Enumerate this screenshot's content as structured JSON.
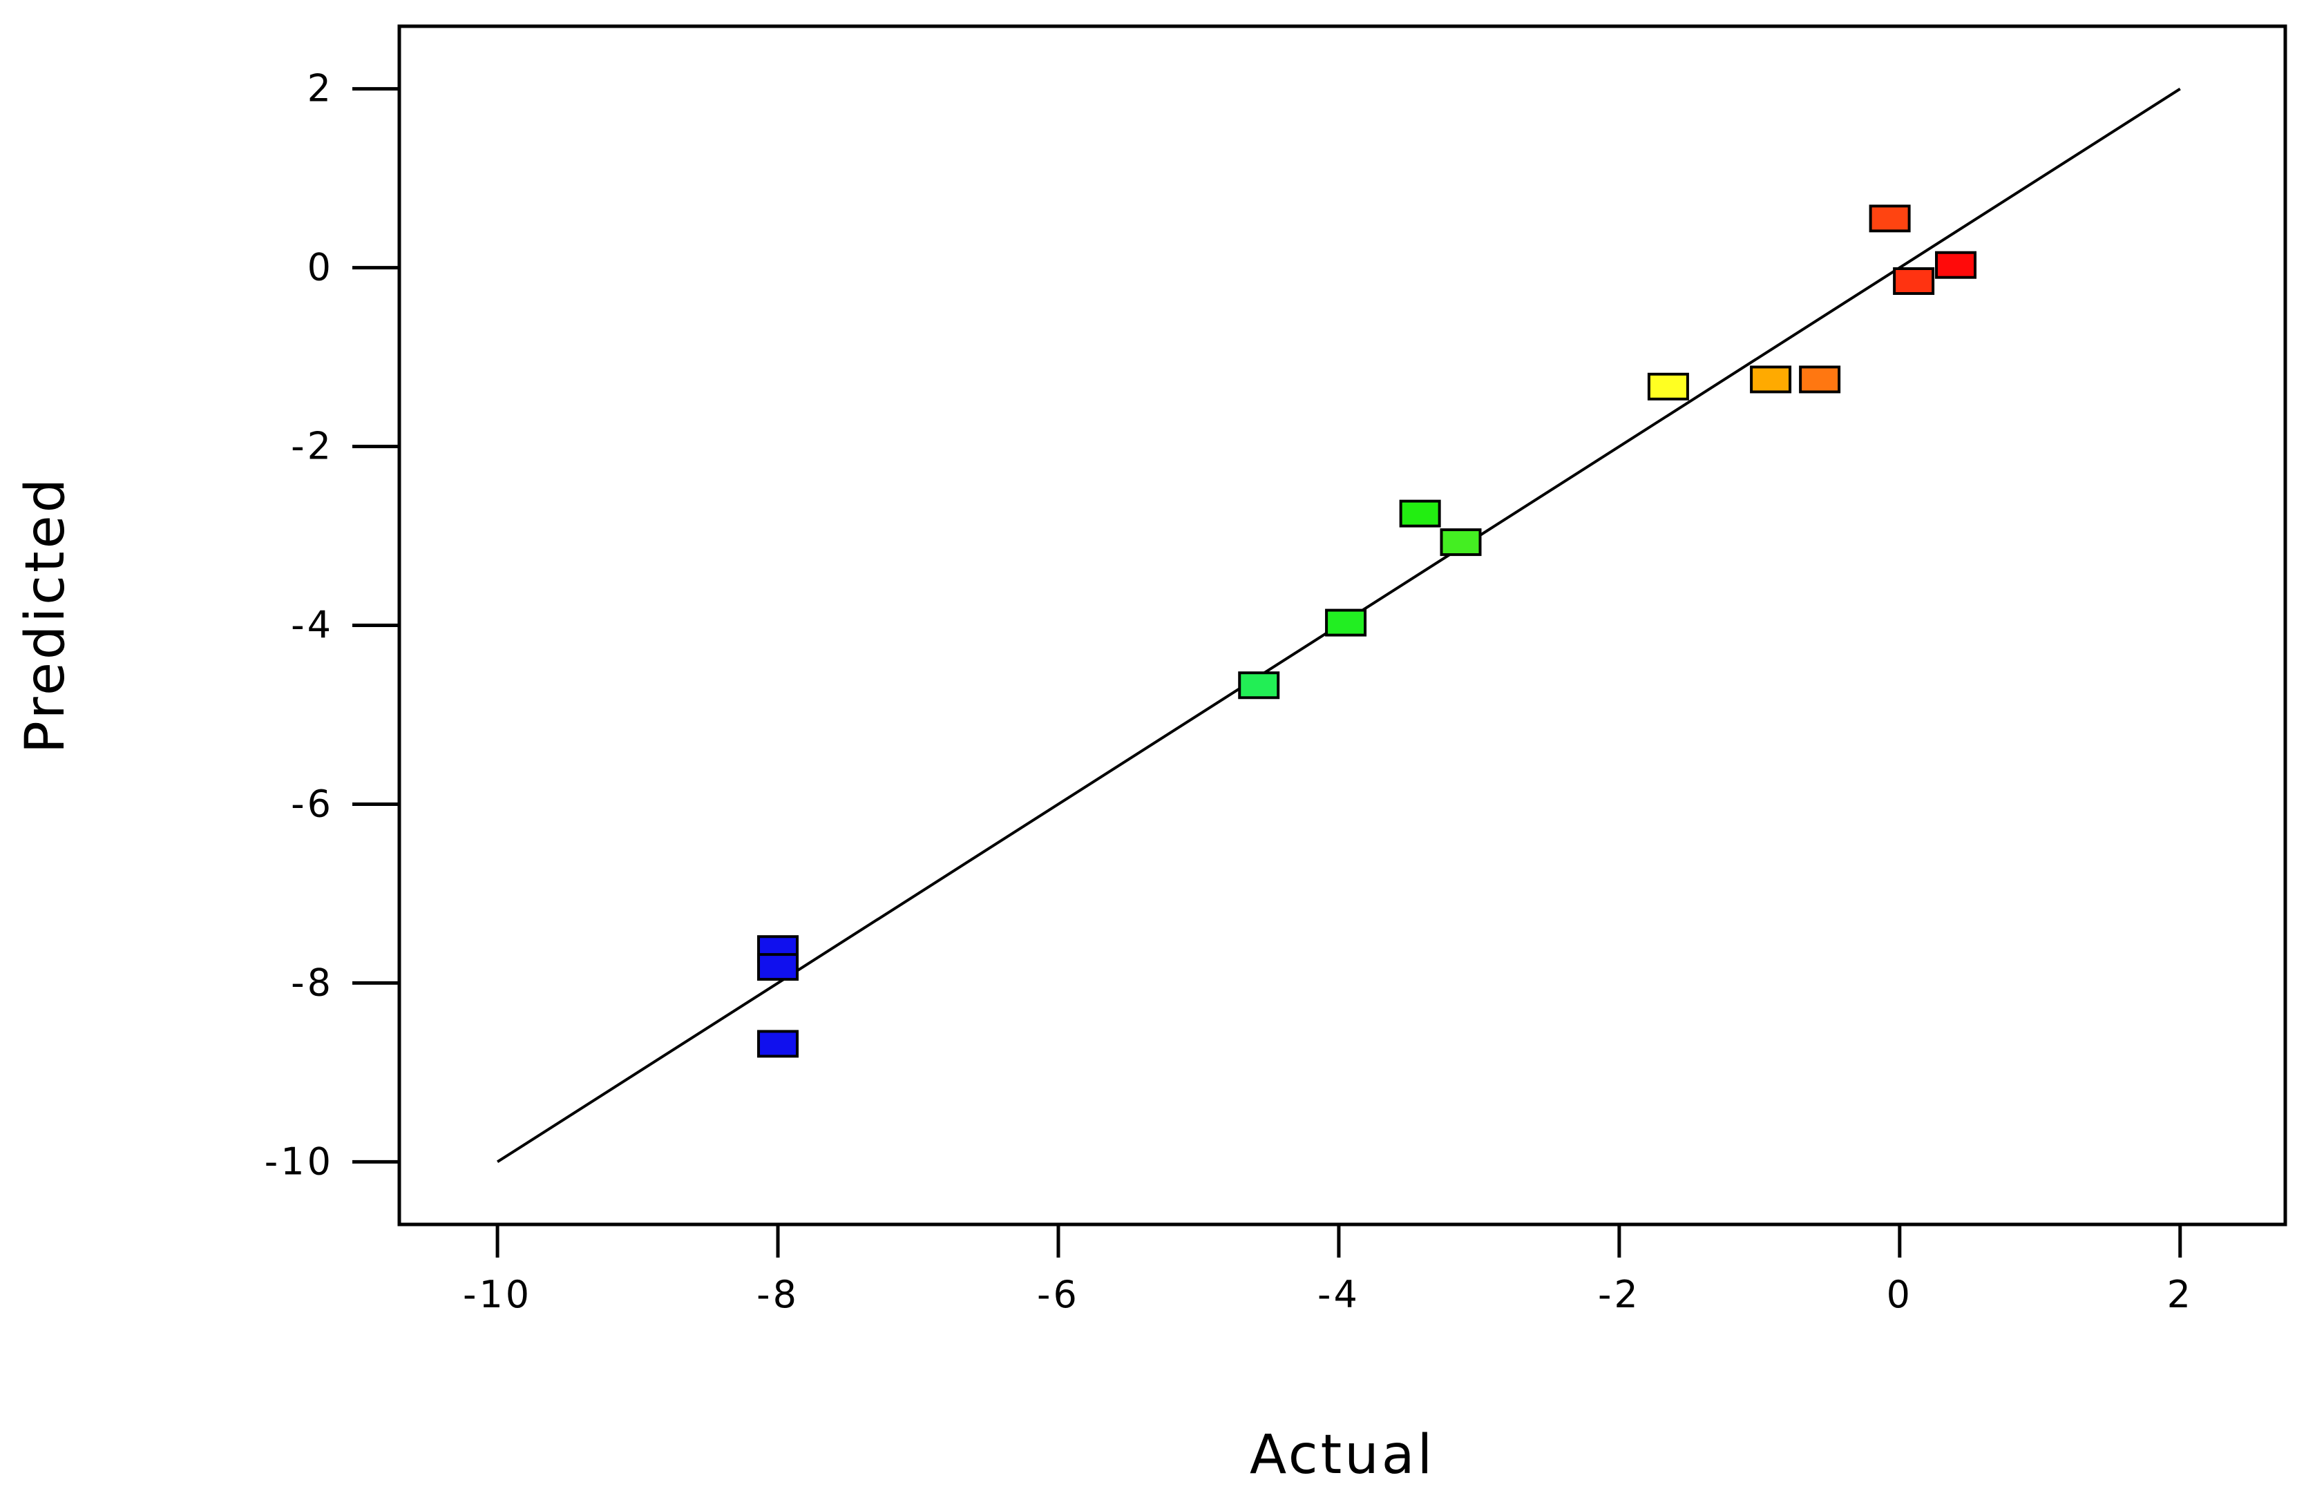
{
  "chart_data": {
    "type": "scatter",
    "title": "",
    "xlabel": "Actual",
    "ylabel": "Predicted",
    "xlim": [
      -10.7,
      2.75
    ],
    "ylim": [
      -10.7,
      2.7
    ],
    "x_ticks": [
      -10,
      -8,
      -6,
      -4,
      -2,
      0,
      2
    ],
    "y_ticks": [
      -10,
      -8,
      -6,
      -4,
      -2,
      0,
      2
    ],
    "x_tick_labels": [
      "-10",
      "-8",
      "-6",
      "-4",
      "-2",
      "0",
      "2"
    ],
    "y_tick_labels": [
      "-10",
      "-8",
      "-6",
      "-4",
      "-2",
      "0",
      "2"
    ],
    "grid": false,
    "reference_line": {
      "x": [
        -10,
        2
      ],
      "y": [
        -10,
        2
      ],
      "color": "#000000"
    },
    "points": [
      {
        "x": -8.0,
        "y": -7.62,
        "color": "#1010EE"
      },
      {
        "x": -8.0,
        "y": -7.82,
        "color": "#1010EE"
      },
      {
        "x": -8.0,
        "y": -8.68,
        "color": "#1010EE"
      },
      {
        "x": -4.57,
        "y": -4.67,
        "color": "#22EE55"
      },
      {
        "x": -3.95,
        "y": -3.97,
        "color": "#22EE22"
      },
      {
        "x": -3.42,
        "y": -2.75,
        "color": "#22EE11"
      },
      {
        "x": -3.13,
        "y": -3.07,
        "color": "#44EE22"
      },
      {
        "x": -1.65,
        "y": -1.33,
        "color": "#FFFF22"
      },
      {
        "x": -0.92,
        "y": -1.25,
        "color": "#FFAA00"
      },
      {
        "x": -0.57,
        "y": -1.25,
        "color": "#FF7711"
      },
      {
        "x": -0.07,
        "y": 0.55,
        "color": "#FF4411"
      },
      {
        "x": 0.1,
        "y": -0.15,
        "color": "#FF3311"
      },
      {
        "x": 0.4,
        "y": 0.03,
        "color": "#FF0A0A"
      }
    ]
  }
}
